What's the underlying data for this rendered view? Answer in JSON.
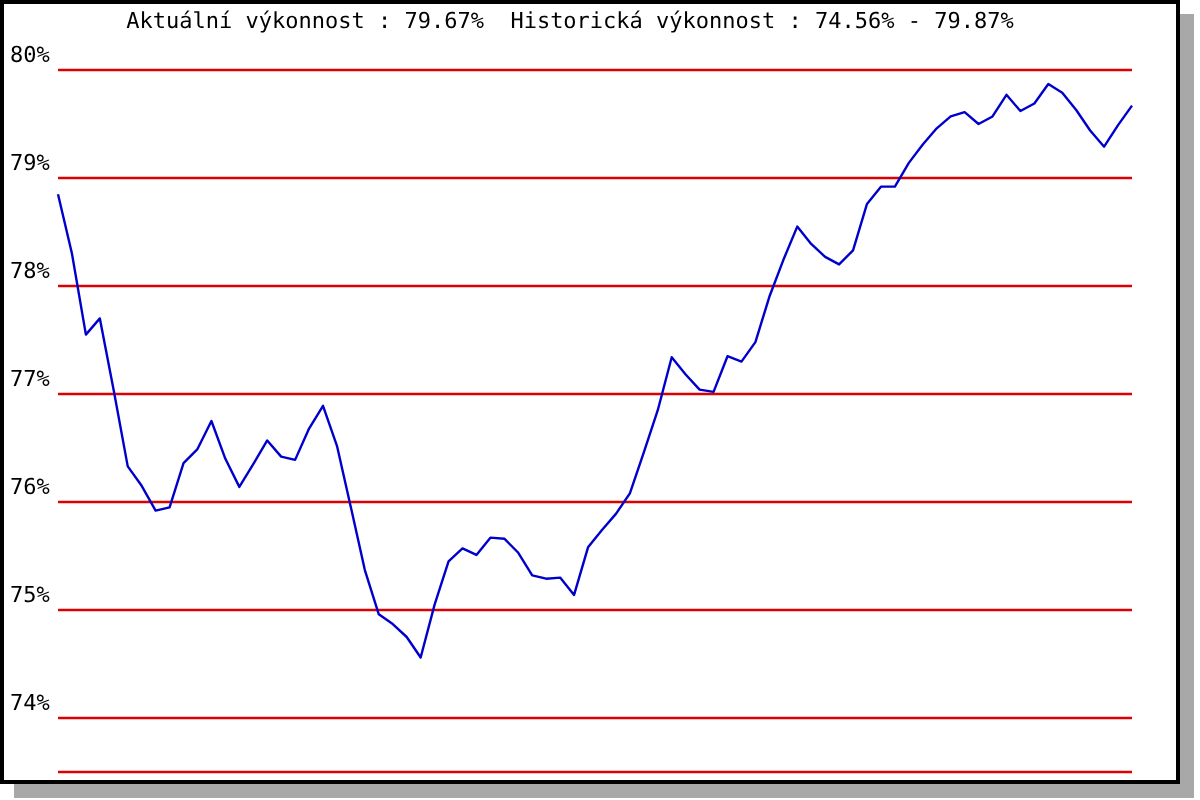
{
  "chart_data": {
    "type": "line",
    "title": "Aktuální výkonnost : 79.67%  Historická výkonnost : 74.56% - 79.87%",
    "categories": [
      null,
      null,
      null,
      null,
      null,
      null,
      null,
      null,
      null,
      null,
      null,
      null,
      null,
      null,
      null,
      null,
      null,
      null,
      null,
      null,
      null,
      null,
      null,
      null,
      null,
      null,
      null,
      null,
      null,
      null,
      null,
      null,
      null,
      null,
      null,
      null,
      null,
      null,
      null,
      null,
      null,
      null,
      null,
      null,
      null,
      null,
      null,
      null,
      null,
      null,
      null,
      null,
      null,
      null,
      null,
      null,
      null,
      null,
      null,
      null,
      null,
      null,
      null,
      null,
      null,
      null,
      null,
      null,
      null,
      null,
      null,
      null,
      null,
      null,
      null,
      null,
      null,
      null
    ],
    "series": [
      {
        "color": "#0000cc",
        "values": [
          78.85,
          78.3,
          77.55,
          77.7,
          77.03,
          76.33,
          76.15,
          75.92,
          75.95,
          76.36,
          76.49,
          76.75,
          76.4,
          76.14,
          76.35,
          76.57,
          76.42,
          76.39,
          76.68,
          76.89,
          76.52,
          75.95,
          75.37,
          74.96,
          74.87,
          74.75,
          74.56,
          75.05,
          75.45,
          75.57,
          75.51,
          75.67,
          75.66,
          75.53,
          75.32,
          75.29,
          75.3,
          75.14,
          75.58,
          75.74,
          75.89,
          76.08,
          76.46,
          76.85,
          77.34,
          77.18,
          77.04,
          77.02,
          77.35,
          77.3,
          77.48,
          77.9,
          78.24,
          78.55,
          78.39,
          78.27,
          78.2,
          78.33,
          78.76,
          78.92,
          78.92,
          79.14,
          79.31,
          79.46,
          79.57,
          79.61,
          79.5,
          79.57,
          79.77,
          79.62,
          79.69,
          79.87,
          79.79,
          79.63,
          79.44,
          79.29,
          79.49,
          79.67
        ]
      }
    ],
    "ylim": [
      73.5,
      80
    ],
    "yticks": [
      {
        "value": 74,
        "label": "74%"
      },
      {
        "value": 75,
        "label": "75%"
      },
      {
        "value": 76,
        "label": "76%"
      },
      {
        "value": 77,
        "label": "77%"
      },
      {
        "value": 78,
        "label": "78%"
      },
      {
        "value": 79,
        "label": "79%"
      },
      {
        "value": 80,
        "label": "80%"
      }
    ],
    "grid": "y",
    "tick_labels": "y"
  }
}
